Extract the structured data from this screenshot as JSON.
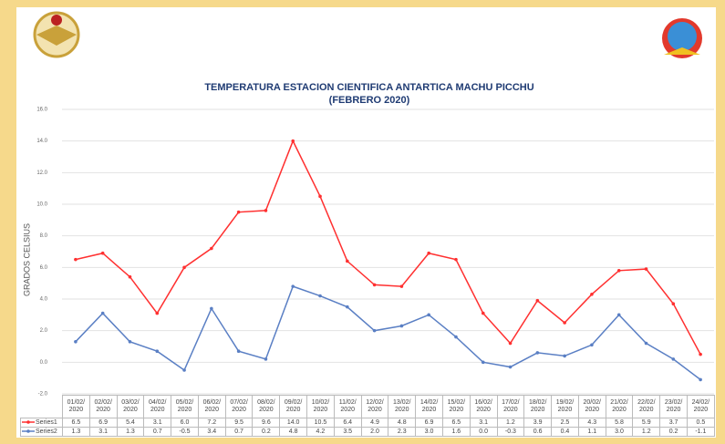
{
  "chart_data": {
    "type": "line",
    "title": "TEMPERATURA ESTACION CIENTIFICA ANTARTICA MACHU PICCHU",
    "subtitle": "(FEBRERO 2020)",
    "y_label": "GRADOS CELSIUS",
    "categories": [
      "01/02/2020",
      "02/02/2020",
      "03/02/2020",
      "04/02/2020",
      "05/02/2020",
      "06/02/2020",
      "07/02/2020",
      "08/02/2020",
      "09/02/2020",
      "10/02/2020",
      "11/02/2020",
      "12/02/2020",
      "13/02/2020",
      "14/02/2020",
      "15/02/2020",
      "16/02/2020",
      "17/02/2020",
      "18/02/2020",
      "19/02/2020",
      "20/02/2020",
      "21/02/2020",
      "22/02/2020",
      "23/02/2020",
      "24/02/2020"
    ],
    "series": [
      {
        "name": "Series1",
        "color": "#ff3030",
        "values": [
          6.5,
          6.9,
          5.4,
          3.1,
          6.0,
          7.2,
          9.5,
          9.6,
          14.0,
          10.5,
          6.4,
          4.9,
          4.8,
          6.9,
          6.5,
          3.1,
          1.2,
          3.9,
          2.5,
          4.3,
          5.8,
          5.9,
          3.7,
          0.5
        ],
        "value_labels": [
          "6.5",
          "6.9",
          "5.4",
          "3.1",
          "6.0",
          "7.2",
          "9.5",
          "9.6",
          "14.0",
          "10.5",
          "6.4",
          "4.9",
          "4.8",
          "6.9",
          "6.5",
          "3.1",
          "1.2",
          "3.9",
          "2.5",
          "4.3",
          "5.8",
          "5.9",
          "3.7",
          "0.5"
        ]
      },
      {
        "name": "Series2",
        "color": "#5a7fc4",
        "values": [
          1.3,
          3.1,
          1.3,
          0.7,
          -0.5,
          3.4,
          0.7,
          0.2,
          4.8,
          4.2,
          3.5,
          2.0,
          2.3,
          3.0,
          1.6,
          0.0,
          -0.3,
          0.6,
          0.4,
          1.1,
          3.0,
          1.2,
          0.2,
          -1.1
        ],
        "value_labels": [
          "1.3",
          "3.1",
          "1.3",
          "0.7",
          "-0.5",
          "3.4",
          "0.7",
          "0.2",
          "4.8",
          "4.2",
          "3.5",
          "2.0",
          "2.3",
          "3.0",
          "1.6",
          "0.0",
          "-0.3",
          "0.6",
          "0.4",
          "1.1",
          "3.0",
          "1.2",
          "0.2",
          "-1.1"
        ]
      }
    ],
    "ylim": [
      -2,
      16
    ],
    "yticks": [
      {
        "value": -2,
        "label": "-2.0"
      },
      {
        "value": 0,
        "label": "0.0"
      },
      {
        "value": 2,
        "label": "2.0"
      },
      {
        "value": 4,
        "label": "4.0"
      },
      {
        "value": 6,
        "label": "6.0"
      },
      {
        "value": 8,
        "label": "8.0"
      },
      {
        "value": 10,
        "label": "10.0"
      },
      {
        "value": 12,
        "label": "12.0"
      },
      {
        "value": 14,
        "label": "14.0"
      },
      {
        "value": 16,
        "label": "16.0"
      }
    ],
    "grid": true
  }
}
